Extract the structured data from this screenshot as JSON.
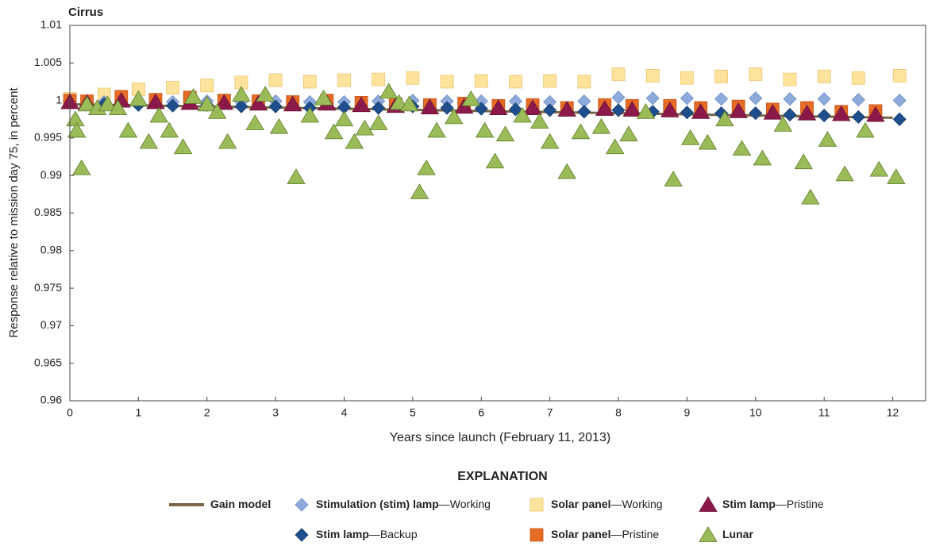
{
  "chart_data": {
    "type": "scatter",
    "title": "Cirrus",
    "y_label": "Response relative to mission day 75, in percent",
    "x_label": "Years since launch (February 11, 2013)",
    "legend_title": "EXPLANATION",
    "xlim": [
      0,
      12.48
    ],
    "xticks": [
      0,
      1,
      2,
      3,
      4,
      5,
      6,
      7,
      8,
      9,
      10,
      11,
      12
    ],
    "ylim": [
      0.96,
      1.01
    ],
    "yticks": [
      0.96,
      0.965,
      0.97,
      0.975,
      0.98,
      0.985,
      0.99,
      0.995,
      1,
      1.005,
      1.01
    ],
    "series": [
      {
        "name": "Gain model",
        "marker": "line",
        "color": "#7a6645",
        "x": [
          0,
          2,
          4,
          6,
          8,
          10,
          12
        ],
        "values": [
          0.9995,
          0.9992,
          0.9989,
          0.9986,
          0.9983,
          0.998,
          0.9977
        ]
      },
      {
        "name": "Solar panel—Working",
        "marker": "square",
        "color": "#fde39c",
        "edge": "#efc46e",
        "x": [
          0,
          0.5,
          1,
          1.5,
          2,
          2.5,
          3,
          3.5,
          4,
          4.5,
          5,
          5.5,
          6,
          6.5,
          7,
          7.5,
          8,
          8.5,
          9,
          9.5,
          10,
          10.5,
          11,
          11.5,
          12.1
        ],
        "values": [
          1.0002,
          1.0008,
          1.0015,
          1.0017,
          1.002,
          1.0024,
          1.0027,
          1.0025,
          1.0027,
          1.0028,
          1.003,
          1.0025,
          1.0026,
          1.0025,
          1.0026,
          1.0025,
          1.0035,
          1.0033,
          1.003,
          1.0032,
          1.0035,
          1.0028,
          1.0032,
          1.003,
          1.0033
        ]
      },
      {
        "name": "Stimulation (stim) lamp—Working",
        "marker": "diamond",
        "color": "#8eaadb",
        "edge": "#6f8fc4",
        "x": [
          0,
          0.5,
          1,
          1.5,
          2,
          2.5,
          3,
          3.5,
          4,
          4.5,
          5,
          5.5,
          6,
          6.5,
          7,
          7.5,
          8,
          8.5,
          9,
          9.5,
          10,
          10.5,
          11,
          11.5,
          12.1
        ],
        "values": [
          1.0,
          0.9998,
          0.9999,
          0.9998,
          0.9999,
          0.9998,
          0.9999,
          0.9998,
          0.9998,
          0.9999,
          1.0,
          0.9999,
          0.9999,
          0.9999,
          0.9998,
          0.9999,
          1.0004,
          1.0003,
          1.0003,
          1.0002,
          1.0003,
          1.0002,
          1.0002,
          1.0001,
          1.0
        ]
      },
      {
        "name": "Stim lamp—Backup",
        "marker": "diamond",
        "color": "#1f4e8c",
        "edge": "#173c6c",
        "x": [
          0,
          0.5,
          1,
          1.5,
          2,
          2.5,
          3,
          3.5,
          4,
          4.5,
          5,
          5.5,
          6,
          6.5,
          7,
          7.5,
          8,
          8.5,
          9,
          9.5,
          10,
          10.5,
          11,
          11.5,
          12.1
        ],
        "values": [
          0.9998,
          0.9995,
          0.9994,
          0.9993,
          0.9994,
          0.9992,
          0.9992,
          0.999,
          0.9991,
          0.999,
          0.9992,
          0.999,
          0.9989,
          0.9988,
          0.9987,
          0.9985,
          0.9987,
          0.9985,
          0.9984,
          0.9983,
          0.9983,
          0.9981,
          0.998,
          0.9978,
          0.9975
        ]
      },
      {
        "name": "Solar panel—Pristine",
        "marker": "square",
        "color": "#e66b24",
        "edge": "#c4561a",
        "x": [
          0,
          0.25,
          0.75,
          1.25,
          1.75,
          2.25,
          2.75,
          3.25,
          3.75,
          4.25,
          4.75,
          5.25,
          5.75,
          6.25,
          6.75,
          7.25,
          7.8,
          8.2,
          8.75,
          9.2,
          9.75,
          10.25,
          10.75,
          11.25,
          11.75
        ],
        "values": [
          1.0,
          0.9999,
          1.0005,
          1.0001,
          1.0004,
          1.0,
          0.9999,
          0.9998,
          1.0,
          0.9997,
          0.9995,
          0.9994,
          0.9996,
          0.9993,
          0.9994,
          0.999,
          0.9994,
          0.9993,
          0.9993,
          0.999,
          0.9992,
          0.9988,
          0.999,
          0.9985,
          0.9986
        ]
      },
      {
        "name": "Stim lamp—Pristine",
        "marker": "triangle",
        "color": "#8b1a4a",
        "edge": "#6a1236",
        "x": [
          0,
          0.25,
          0.75,
          1.25,
          1.75,
          2.25,
          2.75,
          3.25,
          3.75,
          4.25,
          4.75,
          5.25,
          5.75,
          6.25,
          6.75,
          7.25,
          7.8,
          8.2,
          8.75,
          9.2,
          9.75,
          10.25,
          10.75,
          11.25,
          11.75
        ],
        "values": [
          0.9998,
          0.9997,
          1.0,
          0.9998,
          0.9997,
          0.9997,
          0.9996,
          0.9995,
          0.9996,
          0.9994,
          0.9993,
          0.9991,
          0.9992,
          0.999,
          0.999,
          0.9988,
          0.9989,
          0.9988,
          0.9987,
          0.9985,
          0.9986,
          0.9984,
          0.9983,
          0.9982,
          0.9981
        ]
      },
      {
        "name": "Lunar",
        "marker": "triangle",
        "color": "#9bbb59",
        "edge": "#5f7f2a",
        "x": [
          0.08,
          0.1,
          0.17,
          0.25,
          0.4,
          0.55,
          0.7,
          0.85,
          1.0,
          1.15,
          1.3,
          1.45,
          1.65,
          1.8,
          2.0,
          2.15,
          2.3,
          2.5,
          2.7,
          2.85,
          3.05,
          3.3,
          3.5,
          3.7,
          3.85,
          4.0,
          4.15,
          4.3,
          4.5,
          4.65,
          4.8,
          4.95,
          5.1,
          5.2,
          5.35,
          5.6,
          5.85,
          6.05,
          6.2,
          6.35,
          6.6,
          6.85,
          7.0,
          7.25,
          7.45,
          7.75,
          7.95,
          8.15,
          8.4,
          8.8,
          9.05,
          9.3,
          9.55,
          9.8,
          10.1,
          10.4,
          10.7,
          10.8,
          11.05,
          11.3,
          11.6,
          11.8,
          12.05
        ],
        "values": [
          0.9975,
          0.996,
          0.991,
          0.9995,
          0.999,
          0.9995,
          0.999,
          0.996,
          1.0002,
          0.9945,
          0.998,
          0.996,
          0.9938,
          1.0005,
          0.9995,
          0.9985,
          0.9945,
          1.0008,
          0.997,
          1.0008,
          0.9965,
          0.9898,
          0.998,
          1.0003,
          0.9958,
          0.9975,
          0.9945,
          0.9963,
          0.997,
          1.0012,
          0.9997,
          0.9995,
          0.9878,
          0.991,
          0.996,
          0.9978,
          1.0002,
          0.996,
          0.9919,
          0.9955,
          0.998,
          0.9972,
          0.9945,
          0.9905,
          0.9958,
          0.9965,
          0.9938,
          0.9955,
          0.9985,
          0.9895,
          0.995,
          0.9944,
          0.9975,
          0.9936,
          0.9923,
          0.9968,
          0.9918,
          0.9871,
          0.9948,
          0.9902,
          0.996,
          0.9908,
          0.9898
        ]
      }
    ]
  }
}
